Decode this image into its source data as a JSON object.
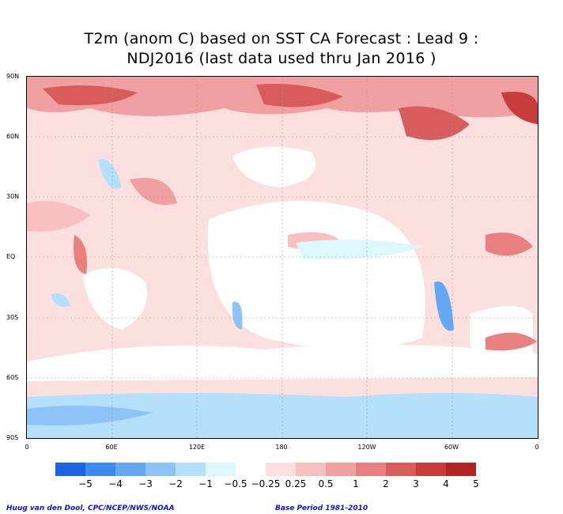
{
  "title": {
    "line1": "T2m (anom C) based on SST CA Forecast : Lead 9 :",
    "line2": "NDJ2016 (last data used thru Jan 2016 )"
  },
  "lat_labels": [
    "90N",
    "60N",
    "30N",
    "EQ",
    "30S",
    "60S",
    "90S"
  ],
  "lon_labels": [
    "0",
    "60E",
    "120E",
    "180",
    "120W",
    "60W",
    "0"
  ],
  "colorbar": {
    "colors": [
      "#1c64e0",
      "#3c8cf0",
      "#64a8f4",
      "#8cc4f8",
      "#b4e0fc",
      "#dcf8fc",
      "#ffffff",
      "#fce0e0",
      "#f8c0c0",
      "#f0a0a0",
      "#e88080",
      "#d85c5c",
      "#c83c3c",
      "#b42424"
    ],
    "labels": [
      "−5",
      "−4",
      "−3",
      "−2",
      "−1",
      "−0.5",
      "−0.25",
      "0.25",
      "0.5",
      "1",
      "2",
      "3",
      "4",
      "5"
    ]
  },
  "footer": {
    "left": "Huug van den Dool, CPC/NCEP/NWS/NOAA",
    "right": "Base Period 1981-2010"
  }
}
